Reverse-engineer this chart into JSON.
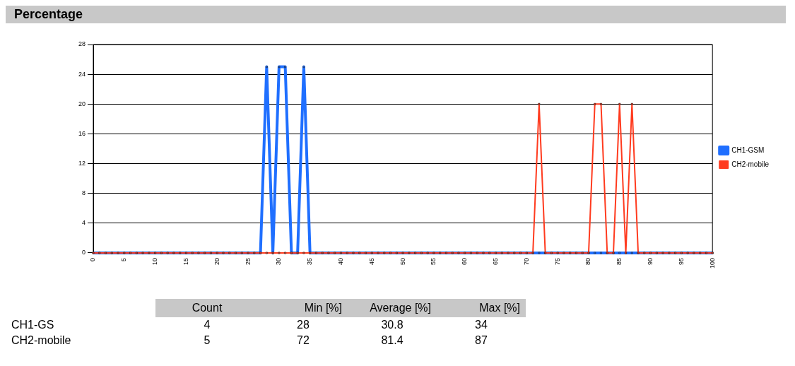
{
  "chart_data": {
    "type": "line",
    "title": "Percentage",
    "x": [
      0,
      1,
      2,
      3,
      4,
      5,
      6,
      7,
      8,
      9,
      10,
      11,
      12,
      13,
      14,
      15,
      16,
      17,
      18,
      19,
      20,
      21,
      22,
      23,
      24,
      25,
      26,
      27,
      28,
      29,
      30,
      31,
      32,
      33,
      34,
      35,
      36,
      37,
      38,
      39,
      40,
      41,
      42,
      43,
      44,
      45,
      46,
      47,
      48,
      49,
      50,
      51,
      52,
      53,
      54,
      55,
      56,
      57,
      58,
      59,
      60,
      61,
      62,
      63,
      64,
      65,
      66,
      67,
      68,
      69,
      70,
      71,
      72,
      73,
      74,
      75,
      76,
      77,
      78,
      79,
      80,
      81,
      82,
      83,
      84,
      85,
      86,
      87,
      88,
      89,
      90,
      91,
      92,
      93,
      94,
      95,
      96,
      97,
      98,
      99,
      100
    ],
    "series": [
      {
        "name": "CH1-GSM",
        "color": "#1f6fff",
        "values": [
          0,
          0,
          0,
          0,
          0,
          0,
          0,
          0,
          0,
          0,
          0,
          0,
          0,
          0,
          0,
          0,
          0,
          0,
          0,
          0,
          0,
          0,
          0,
          0,
          0,
          0,
          0,
          0,
          25,
          0,
          25,
          25,
          0,
          0,
          25,
          0,
          0,
          0,
          0,
          0,
          0,
          0,
          0,
          0,
          0,
          0,
          0,
          0,
          0,
          0,
          0,
          0,
          0,
          0,
          0,
          0,
          0,
          0,
          0,
          0,
          0,
          0,
          0,
          0,
          0,
          0,
          0,
          0,
          0,
          0,
          0,
          0,
          0,
          0,
          0,
          0,
          0,
          0,
          0,
          0,
          0,
          0,
          0,
          0,
          0,
          0,
          0,
          0,
          0,
          0,
          0,
          0,
          0,
          0,
          0,
          0,
          0,
          0,
          0,
          0,
          0
        ]
      },
      {
        "name": "CH2-mobile",
        "color": "#ff3b1f",
        "values": [
          0,
          0,
          0,
          0,
          0,
          0,
          0,
          0,
          0,
          0,
          0,
          0,
          0,
          0,
          0,
          0,
          0,
          0,
          0,
          0,
          0,
          0,
          0,
          0,
          0,
          0,
          0,
          0,
          0,
          0,
          0,
          0,
          0,
          0,
          0,
          0,
          0,
          0,
          0,
          0,
          0,
          0,
          0,
          0,
          0,
          0,
          0,
          0,
          0,
          0,
          0,
          0,
          0,
          0,
          0,
          0,
          0,
          0,
          0,
          0,
          0,
          0,
          0,
          0,
          0,
          0,
          0,
          0,
          0,
          0,
          0,
          0,
          20,
          0,
          0,
          0,
          0,
          0,
          0,
          0,
          0,
          20,
          20,
          0,
          0,
          20,
          0,
          20,
          0,
          0,
          0,
          0,
          0,
          0,
          0,
          0,
          0,
          0,
          0,
          0,
          0
        ]
      }
    ],
    "xlim": [
      0,
      100
    ],
    "xticks": [
      0,
      5,
      10,
      15,
      20,
      25,
      30,
      35,
      40,
      45,
      50,
      55,
      60,
      65,
      70,
      75,
      80,
      85,
      90,
      95,
      100
    ],
    "ylim": [
      0,
      28
    ],
    "yticks": [
      0,
      4,
      8,
      12,
      16,
      20,
      24,
      28
    ],
    "grid": "y",
    "legend": "right",
    "marker": "square",
    "line_style": "solid",
    "annotations": [
      "Count",
      "Min [%]",
      "Average [%]",
      "Max [%]",
      "CH1-GS",
      "4",
      "28",
      "30.8",
      "34",
      "CH2-mobile",
      "5",
      "72",
      "81.4",
      "87"
    ]
  }
}
